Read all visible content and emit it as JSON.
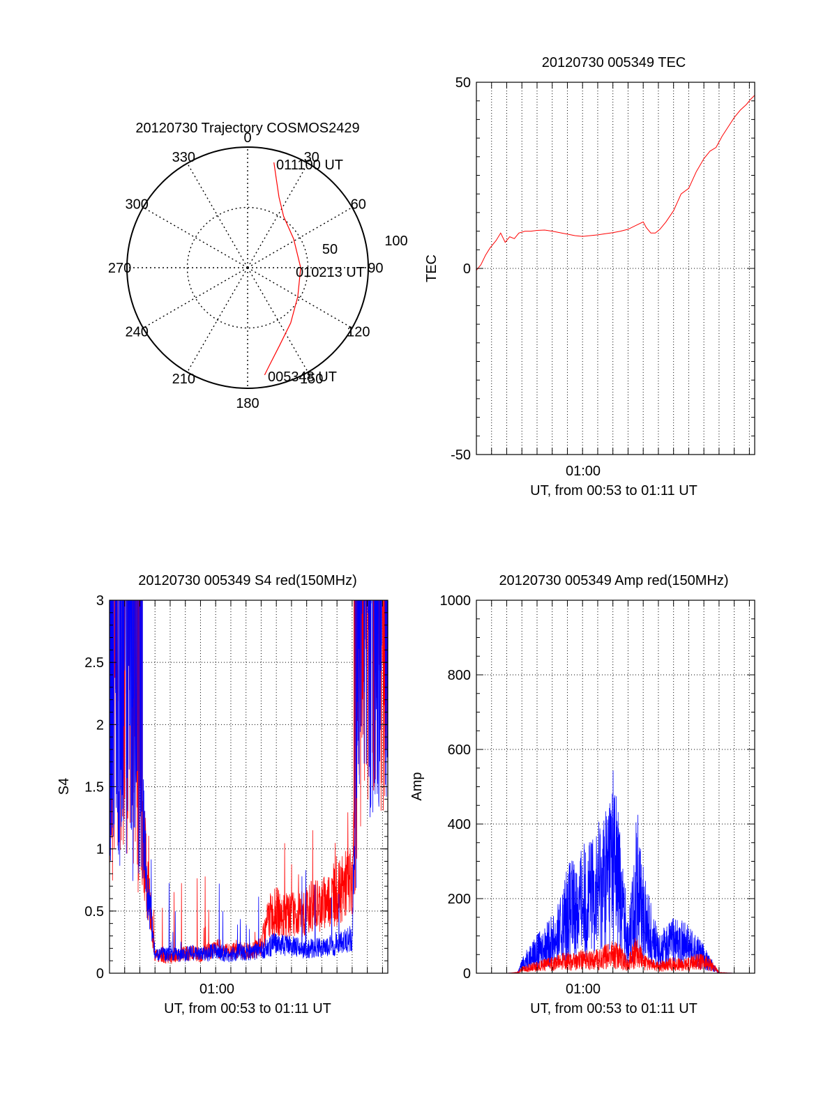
{
  "colors": {
    "red": "#ff0000",
    "blue": "#0000ff",
    "axis": "#000000",
    "grid": "#000000"
  },
  "chart_data": [
    {
      "id": "polar",
      "type": "polar",
      "title": "20120730 Trajectory COSMOS2429",
      "azimuth_labels": [
        "0",
        "30",
        "60",
        "90",
        "120",
        "150",
        "180",
        "210",
        "240",
        "270",
        "300",
        "330"
      ],
      "radial_labels": [
        "50",
        "100"
      ],
      "radial_max": 100,
      "trajectory": {
        "color": "#ff0000",
        "points": [
          [
            14,
            90
          ],
          [
            18,
            77
          ],
          [
            24,
            64
          ],
          [
            35,
            52
          ],
          [
            58,
            45
          ],
          [
            90,
            44
          ],
          [
            120,
            48
          ],
          [
            142,
            58
          ],
          [
            158,
            70
          ],
          [
            168,
            84
          ],
          [
            171,
            90
          ]
        ]
      },
      "annotations": [
        {
          "text": "011100 UT",
          "az": 20,
          "r": 92
        },
        {
          "text": "010213 UT",
          "az": 80,
          "r": 45
        },
        {
          "text": "005348 UT",
          "az": 167,
          "r": 90
        }
      ]
    },
    {
      "id": "tec",
      "type": "line",
      "title": "20120730 005349 TEC",
      "ylabel": "TEC",
      "xlabel": "UT, from 00:53 to 01:11 UT",
      "xticklabel": "01:00",
      "xlim": [
        53.0,
        71.35
      ],
      "ylim": [
        -50,
        50
      ],
      "yticks": [
        -50,
        0,
        50
      ],
      "series": [
        {
          "color": "#ff0000",
          "x": [
            53.0,
            53.3,
            53.6,
            53.9,
            54.3,
            54.6,
            54.9,
            55.2,
            55.5,
            55.8,
            56.2,
            56.6,
            57.0,
            57.5,
            58.0,
            58.5,
            59.0,
            59.5,
            60.0,
            60.5,
            61.0,
            61.5,
            62.0,
            62.5,
            63.0,
            63.5,
            64.0,
            64.2,
            64.5,
            64.8,
            65.1,
            65.5,
            66.0,
            66.5,
            67.0,
            67.5,
            68.0,
            68.4,
            68.8,
            69.2,
            69.6,
            70.0,
            70.4,
            70.8,
            71.1,
            71.35
          ],
          "y": [
            -0.5,
            1,
            3.5,
            5.5,
            7.5,
            9.5,
            7,
            8.5,
            8,
            9.5,
            10,
            10,
            10.2,
            10.3,
            10,
            9.6,
            9.2,
            8.8,
            8.6,
            8.8,
            9.0,
            9.3,
            9.6,
            10,
            10.5,
            11.5,
            12.5,
            11,
            9.5,
            9.5,
            10.5,
            12.5,
            15.5,
            20,
            21.5,
            26,
            29.5,
            31.5,
            32.5,
            35.5,
            38,
            40.5,
            42.5,
            44,
            45.5,
            46.5
          ]
        }
      ]
    },
    {
      "id": "s4",
      "type": "line",
      "title": "20120730 005349 S4 red(150MHz)",
      "ylabel": "S4",
      "xlabel": "UT, from 00:53 to 01:11 UT",
      "xticklabel": "01:00",
      "xlim": [
        53.0,
        71.35
      ],
      "ylim": [
        0,
        3
      ],
      "yticks": [
        0,
        0.5,
        1,
        1.5,
        2,
        2.5,
        3
      ],
      "series": [
        {
          "color": "#ff0000",
          "x": [
            53.0,
            53.5,
            54.0,
            54.5,
            55.0,
            55.5,
            56.0,
            56.5,
            57.0,
            57.5,
            58.0,
            58.5,
            59.0,
            59.5,
            60.0,
            60.5,
            61.0,
            61.5,
            62.0,
            62.5,
            63.0,
            63.5,
            64.0,
            64.5,
            65.0,
            65.5,
            66.0,
            66.5,
            67.0,
            67.5,
            68.0,
            68.5,
            69.0,
            69.5,
            70.0,
            70.5,
            71.35
          ],
          "y": [
            1.5,
            2.0,
            2.5,
            2.2,
            1.4,
            0.7,
            0.15,
            0.13,
            0.12,
            0.15,
            0.16,
            0.17,
            0.14,
            0.18,
            0.2,
            0.19,
            0.17,
            0.2,
            0.18,
            0.18,
            0.22,
            0.45,
            0.5,
            0.45,
            0.48,
            0.46,
            0.5,
            0.55,
            0.55,
            0.6,
            0.62,
            0.7,
            0.75,
            2.8,
            2.9,
            2.9,
            2.9
          ]
        },
        {
          "color": "#0000ff",
          "x": [
            53.0,
            53.5,
            54.0,
            54.5,
            55.0,
            55.5,
            56.0,
            56.5,
            57.0,
            57.5,
            58.0,
            58.5,
            59.0,
            59.5,
            60.0,
            60.5,
            61.0,
            61.5,
            62.0,
            62.5,
            63.0,
            63.5,
            64.0,
            64.5,
            65.0,
            65.5,
            66.0,
            66.5,
            67.0,
            67.5,
            68.0,
            68.5,
            69.0,
            69.5,
            70.0,
            70.5,
            71.35
          ],
          "y": [
            1.9,
            1.7,
            2.1,
            1.8,
            1.5,
            0.7,
            0.14,
            0.15,
            0.16,
            0.14,
            0.15,
            0.17,
            0.15,
            0.16,
            0.18,
            0.16,
            0.15,
            0.17,
            0.16,
            0.17,
            0.18,
            0.22,
            0.24,
            0.23,
            0.22,
            0.2,
            0.19,
            0.21,
            0.2,
            0.22,
            0.24,
            0.25,
            0.28,
            2.9,
            2.95,
            2.9,
            2.8
          ]
        }
      ]
    },
    {
      "id": "amp",
      "type": "line",
      "title": "20120730 005349 Amp red(150MHz)",
      "ylabel": "Amp",
      "xlabel": "UT, from 00:53 to 01:11 UT",
      "xticklabel": "01:00",
      "xlim": [
        53.0,
        71.35
      ],
      "ylim": [
        0,
        1000
      ],
      "yticks": [
        0,
        200,
        400,
        600,
        800,
        1000
      ],
      "series": [
        {
          "color": "#0000ff",
          "x": [
            53.0,
            54.0,
            55.0,
            55.7,
            56.0,
            56.5,
            57.0,
            57.5,
            58.0,
            58.5,
            59.0,
            59.5,
            60.0,
            60.5,
            61.0,
            61.5,
            62.0,
            62.5,
            63.0,
            63.3,
            63.6,
            64.0,
            64.5,
            65.0,
            65.5,
            66.0,
            66.5,
            67.0,
            67.5,
            68.0,
            68.5,
            69.0,
            70.0,
            71.35
          ],
          "y": [
            0,
            0,
            0,
            2,
            30,
            60,
            80,
            100,
            120,
            150,
            230,
            240,
            270,
            280,
            320,
            350,
            450,
            300,
            120,
            200,
            350,
            220,
            150,
            80,
            100,
            120,
            110,
            100,
            80,
            60,
            30,
            2,
            0,
            0
          ]
        },
        {
          "color": "#ff0000",
          "x": [
            53.0,
            55.0,
            55.7,
            56.0,
            56.5,
            57.0,
            57.5,
            58.0,
            58.5,
            59.0,
            59.5,
            60.0,
            60.5,
            61.0,
            61.5,
            62.0,
            62.5,
            63.0,
            63.3,
            63.6,
            64.0,
            64.5,
            65.0,
            65.5,
            66.0,
            66.5,
            67.0,
            67.5,
            68.0,
            68.5,
            69.0,
            70.0,
            71.35
          ],
          "y": [
            0,
            0,
            2,
            15,
            20,
            25,
            30,
            35,
            40,
            45,
            45,
            50,
            45,
            50,
            60,
            70,
            60,
            30,
            60,
            90,
            40,
            30,
            25,
            30,
            35,
            30,
            35,
            40,
            40,
            30,
            2,
            0,
            0
          ]
        }
      ]
    }
  ]
}
